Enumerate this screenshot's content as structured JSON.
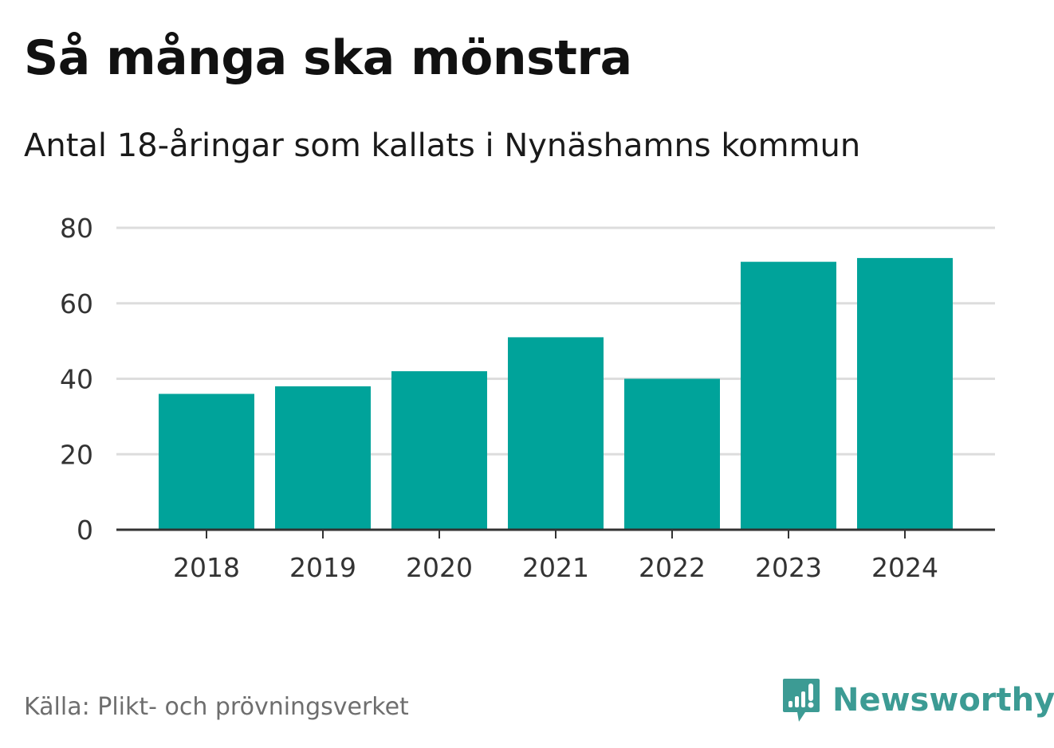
{
  "header": {
    "title": "Så många ska mönstra",
    "subtitle": "Antal 18-åringar som kallats i Nynäshamns kommun"
  },
  "footer": {
    "source": "Källa: Plikt- och prövningsverket",
    "brand": "Newsworthy",
    "brand_icon": "bar-chart-speech-bubble-icon"
  },
  "colors": {
    "bar": "#00a39a",
    "grid": "#dddddd",
    "axis": "#333333",
    "brand": "#3c9b94"
  },
  "chart_data": {
    "type": "bar",
    "categories": [
      "2018",
      "2019",
      "2020",
      "2021",
      "2022",
      "2023",
      "2024"
    ],
    "values": [
      36,
      38,
      42,
      51,
      40,
      71,
      72
    ],
    "ylim": [
      0,
      80
    ],
    "yticks": [
      0,
      20,
      40,
      60,
      80
    ],
    "grid": true
  }
}
